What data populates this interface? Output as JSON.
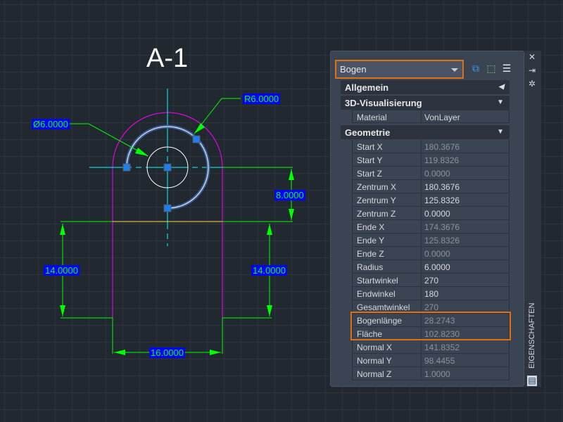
{
  "drawing": {
    "title": "A-1",
    "dims": {
      "radius": "R6.0000",
      "diameter": "Ø6.0000",
      "d8": "8.0000",
      "left14": "14.0000",
      "right14": "14.0000",
      "width16": "16.0000"
    }
  },
  "properties": {
    "selected_object": "Bogen",
    "toolbar": [
      {
        "icon": "quick-select-icon"
      },
      {
        "icon": "select-objects-icon"
      },
      {
        "icon": "toggle-pickadd-icon"
      }
    ],
    "sections": [
      {
        "label": "Allgemein",
        "state": "collapsed"
      },
      {
        "label": "3D-Visualisierung",
        "state": "expanded"
      },
      {
        "label": "Geometrie",
        "state": "expanded"
      }
    ],
    "visual": [
      {
        "k": "Material",
        "v": "VonLayer"
      }
    ],
    "geometry": [
      {
        "k": "Start X",
        "v": "180.3676",
        "ro": true
      },
      {
        "k": "Start Y",
        "v": "119.8326",
        "ro": true
      },
      {
        "k": "Start Z",
        "v": "0.0000",
        "ro": true
      },
      {
        "k": "Zentrum X",
        "v": "180.3676",
        "ro": false
      },
      {
        "k": "Zentrum Y",
        "v": "125.8326",
        "ro": false
      },
      {
        "k": "Zentrum Z",
        "v": "0.0000",
        "ro": false
      },
      {
        "k": "Ende X",
        "v": "174.3676",
        "ro": true
      },
      {
        "k": "Ende Y",
        "v": "125.8326",
        "ro": true
      },
      {
        "k": "Ende Z",
        "v": "0.0000",
        "ro": true
      },
      {
        "k": "Radius",
        "v": "6.0000",
        "ro": false
      },
      {
        "k": "Startwinkel",
        "v": "270",
        "ro": false
      },
      {
        "k": "Endwinkel",
        "v": "180",
        "ro": false
      },
      {
        "k": "Gesamtwinkel",
        "v": "270",
        "ro": true
      },
      {
        "k": "Bogenlänge",
        "v": "28.2743",
        "ro": true
      },
      {
        "k": "Fläche",
        "v": "102.8230",
        "ro": true
      },
      {
        "k": "Normal X",
        "v": "141.8352",
        "ro": true
      },
      {
        "k": "Normal Y",
        "v": "98.4455",
        "ro": true
      },
      {
        "k": "Normal Z",
        "v": "1.0000",
        "ro": true
      }
    ],
    "palette_title": "EIGENSCHAFTEN",
    "highlight_color": "#e07010"
  }
}
